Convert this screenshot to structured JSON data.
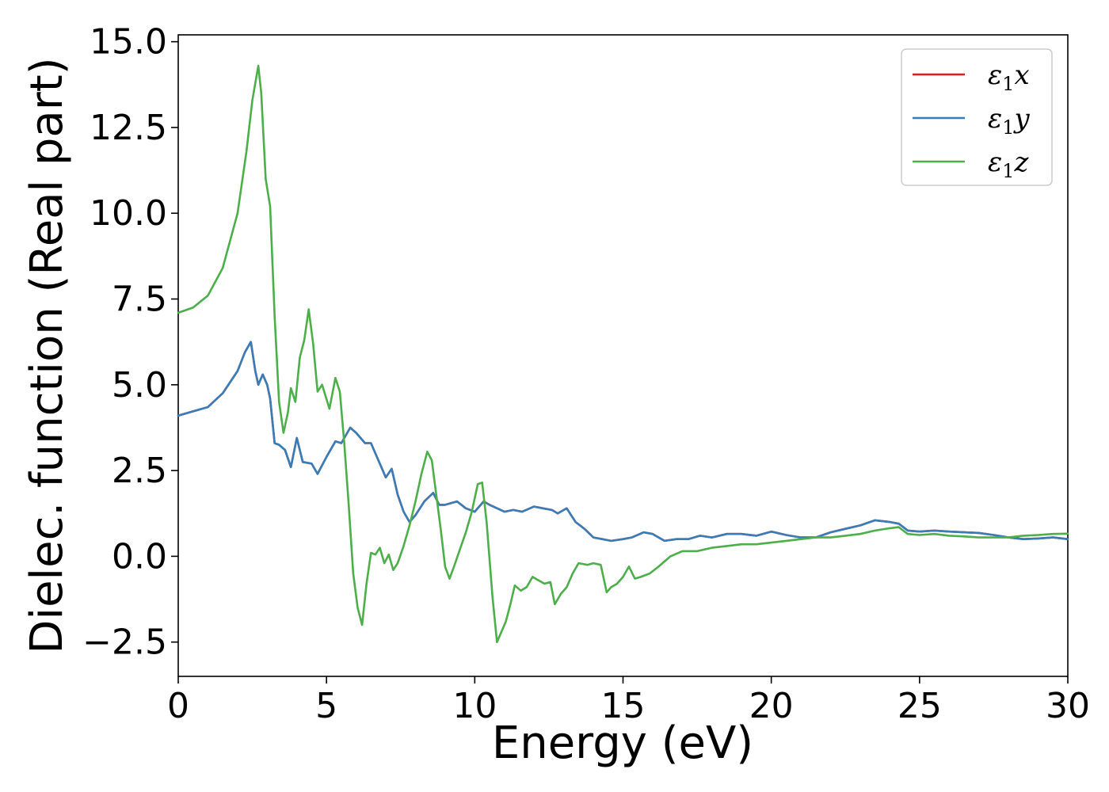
{
  "chart_data": {
    "type": "line",
    "xlabel": "Energy (eV)",
    "ylabel": "Dielec. function (Real part)",
    "xlim": [
      0,
      30
    ],
    "ylim": [
      -3.5,
      15.2
    ],
    "xticks": [
      0,
      5,
      10,
      15,
      20,
      25,
      30
    ],
    "xtick_labels": [
      "0",
      "5",
      "10",
      "15",
      "20",
      "25",
      "30"
    ],
    "yticks": [
      -2.5,
      0.0,
      2.5,
      5.0,
      7.5,
      10.0,
      12.5,
      15.0
    ],
    "ytick_labels": [
      "−2.5",
      "0.0",
      "2.5",
      "5.0",
      "7.5",
      "10.0",
      "12.5",
      "15.0"
    ],
    "grid": false,
    "legend_position": "top-right",
    "legend_labels": [
      {
        "base": "ε",
        "sub": "1",
        "var": "x"
      },
      {
        "base": "ε",
        "sub": "1",
        "var": "y"
      },
      {
        "base": "ε",
        "sub": "1",
        "var": "z"
      }
    ],
    "series": [
      {
        "name": "ε1x",
        "color": "#e41a1c",
        "points": [
          [
            0,
            4.1
          ],
          [
            1,
            4.35
          ],
          [
            1.5,
            4.75
          ],
          [
            2,
            5.4
          ],
          [
            2.25,
            5.95
          ],
          [
            2.45,
            6.25
          ],
          [
            2.6,
            5.4
          ],
          [
            2.7,
            5.0
          ],
          [
            2.85,
            5.3
          ],
          [
            3.0,
            5.0
          ],
          [
            3.1,
            4.6
          ],
          [
            3.25,
            3.3
          ],
          [
            3.4,
            3.25
          ],
          [
            3.6,
            3.1
          ],
          [
            3.8,
            2.6
          ],
          [
            4.0,
            3.45
          ],
          [
            4.2,
            2.75
          ],
          [
            4.5,
            2.7
          ],
          [
            4.7,
            2.4
          ],
          [
            5.0,
            2.9
          ],
          [
            5.3,
            3.35
          ],
          [
            5.5,
            3.3
          ],
          [
            5.8,
            3.75
          ],
          [
            6.0,
            3.6
          ],
          [
            6.3,
            3.3
          ],
          [
            6.5,
            3.3
          ],
          [
            6.8,
            2.7
          ],
          [
            7.0,
            2.3
          ],
          [
            7.2,
            2.55
          ],
          [
            7.4,
            1.8
          ],
          [
            7.6,
            1.3
          ],
          [
            7.8,
            1.0
          ],
          [
            8.0,
            1.2
          ],
          [
            8.3,
            1.6
          ],
          [
            8.6,
            1.85
          ],
          [
            8.8,
            1.5
          ],
          [
            9.0,
            1.5
          ],
          [
            9.4,
            1.6
          ],
          [
            9.7,
            1.4
          ],
          [
            10.0,
            1.3
          ],
          [
            10.3,
            1.6
          ],
          [
            10.5,
            1.5
          ],
          [
            11.0,
            1.3
          ],
          [
            11.3,
            1.35
          ],
          [
            11.6,
            1.3
          ],
          [
            12.0,
            1.45
          ],
          [
            12.3,
            1.4
          ],
          [
            12.6,
            1.35
          ],
          [
            12.8,
            1.25
          ],
          [
            13.1,
            1.4
          ],
          [
            13.4,
            1.0
          ],
          [
            13.7,
            0.8
          ],
          [
            14.0,
            0.55
          ],
          [
            14.3,
            0.5
          ],
          [
            14.6,
            0.45
          ],
          [
            15.0,
            0.5
          ],
          [
            15.3,
            0.55
          ],
          [
            15.7,
            0.7
          ],
          [
            16.0,
            0.65
          ],
          [
            16.4,
            0.45
          ],
          [
            16.8,
            0.5
          ],
          [
            17.2,
            0.5
          ],
          [
            17.6,
            0.6
          ],
          [
            18.0,
            0.55
          ],
          [
            18.5,
            0.65
          ],
          [
            19.0,
            0.65
          ],
          [
            19.5,
            0.6
          ],
          [
            20.0,
            0.72
          ],
          [
            20.5,
            0.62
          ],
          [
            21.0,
            0.55
          ],
          [
            21.5,
            0.55
          ],
          [
            22.0,
            0.7
          ],
          [
            22.5,
            0.8
          ],
          [
            23.0,
            0.9
          ],
          [
            23.5,
            1.05
          ],
          [
            24.0,
            1.0
          ],
          [
            24.3,
            0.95
          ],
          [
            24.6,
            0.75
          ],
          [
            25.0,
            0.72
          ],
          [
            25.5,
            0.75
          ],
          [
            26.0,
            0.72
          ],
          [
            26.5,
            0.7
          ],
          [
            27.0,
            0.68
          ],
          [
            27.5,
            0.62
          ],
          [
            28.0,
            0.55
          ],
          [
            28.5,
            0.5
          ],
          [
            29.0,
            0.52
          ],
          [
            29.5,
            0.55
          ],
          [
            30.0,
            0.5
          ]
        ]
      },
      {
        "name": "ε1y",
        "color": "#377eb8",
        "points": [
          [
            0,
            4.1
          ],
          [
            1,
            4.35
          ],
          [
            1.5,
            4.75
          ],
          [
            2,
            5.4
          ],
          [
            2.25,
            5.95
          ],
          [
            2.45,
            6.25
          ],
          [
            2.6,
            5.4
          ],
          [
            2.7,
            5.0
          ],
          [
            2.85,
            5.3
          ],
          [
            3.0,
            5.0
          ],
          [
            3.1,
            4.6
          ],
          [
            3.25,
            3.3
          ],
          [
            3.4,
            3.25
          ],
          [
            3.6,
            3.1
          ],
          [
            3.8,
            2.6
          ],
          [
            4.0,
            3.45
          ],
          [
            4.2,
            2.75
          ],
          [
            4.5,
            2.7
          ],
          [
            4.7,
            2.4
          ],
          [
            5.0,
            2.9
          ],
          [
            5.3,
            3.35
          ],
          [
            5.5,
            3.3
          ],
          [
            5.8,
            3.75
          ],
          [
            6.0,
            3.6
          ],
          [
            6.3,
            3.3
          ],
          [
            6.5,
            3.3
          ],
          [
            6.8,
            2.7
          ],
          [
            7.0,
            2.3
          ],
          [
            7.2,
            2.55
          ],
          [
            7.4,
            1.8
          ],
          [
            7.6,
            1.3
          ],
          [
            7.8,
            1.0
          ],
          [
            8.0,
            1.2
          ],
          [
            8.3,
            1.6
          ],
          [
            8.6,
            1.85
          ],
          [
            8.8,
            1.5
          ],
          [
            9.0,
            1.5
          ],
          [
            9.4,
            1.6
          ],
          [
            9.7,
            1.4
          ],
          [
            10.0,
            1.3
          ],
          [
            10.3,
            1.6
          ],
          [
            10.5,
            1.5
          ],
          [
            11.0,
            1.3
          ],
          [
            11.3,
            1.35
          ],
          [
            11.6,
            1.3
          ],
          [
            12.0,
            1.45
          ],
          [
            12.3,
            1.4
          ],
          [
            12.6,
            1.35
          ],
          [
            12.8,
            1.25
          ],
          [
            13.1,
            1.4
          ],
          [
            13.4,
            1.0
          ],
          [
            13.7,
            0.8
          ],
          [
            14.0,
            0.55
          ],
          [
            14.3,
            0.5
          ],
          [
            14.6,
            0.45
          ],
          [
            15.0,
            0.5
          ],
          [
            15.3,
            0.55
          ],
          [
            15.7,
            0.7
          ],
          [
            16.0,
            0.65
          ],
          [
            16.4,
            0.45
          ],
          [
            16.8,
            0.5
          ],
          [
            17.2,
            0.5
          ],
          [
            17.6,
            0.6
          ],
          [
            18.0,
            0.55
          ],
          [
            18.5,
            0.65
          ],
          [
            19.0,
            0.65
          ],
          [
            19.5,
            0.6
          ],
          [
            20.0,
            0.72
          ],
          [
            20.5,
            0.62
          ],
          [
            21.0,
            0.55
          ],
          [
            21.5,
            0.55
          ],
          [
            22.0,
            0.7
          ],
          [
            22.5,
            0.8
          ],
          [
            23.0,
            0.9
          ],
          [
            23.5,
            1.05
          ],
          [
            24.0,
            1.0
          ],
          [
            24.3,
            0.95
          ],
          [
            24.6,
            0.75
          ],
          [
            25.0,
            0.72
          ],
          [
            25.5,
            0.75
          ],
          [
            26.0,
            0.72
          ],
          [
            26.5,
            0.7
          ],
          [
            27.0,
            0.68
          ],
          [
            27.5,
            0.62
          ],
          [
            28.0,
            0.55
          ],
          [
            28.5,
            0.5
          ],
          [
            29.0,
            0.52
          ],
          [
            29.5,
            0.55
          ],
          [
            30.0,
            0.5
          ]
        ]
      },
      {
        "name": "ε1z",
        "color": "#4daf4a",
        "points": [
          [
            0,
            7.1
          ],
          [
            0.5,
            7.25
          ],
          [
            1.0,
            7.6
          ],
          [
            1.5,
            8.4
          ],
          [
            2.0,
            10.0
          ],
          [
            2.3,
            11.8
          ],
          [
            2.5,
            13.3
          ],
          [
            2.7,
            14.3
          ],
          [
            2.8,
            13.5
          ],
          [
            2.95,
            11.0
          ],
          [
            3.1,
            10.2
          ],
          [
            3.25,
            7.0
          ],
          [
            3.4,
            4.5
          ],
          [
            3.55,
            3.6
          ],
          [
            3.7,
            4.2
          ],
          [
            3.8,
            4.9
          ],
          [
            3.95,
            4.5
          ],
          [
            4.1,
            5.8
          ],
          [
            4.25,
            6.3
          ],
          [
            4.4,
            7.2
          ],
          [
            4.55,
            6.2
          ],
          [
            4.7,
            4.8
          ],
          [
            4.85,
            5.0
          ],
          [
            5.1,
            4.3
          ],
          [
            5.3,
            5.2
          ],
          [
            5.45,
            4.8
          ],
          [
            5.6,
            3.3
          ],
          [
            5.75,
            1.5
          ],
          [
            5.9,
            -0.5
          ],
          [
            6.05,
            -1.5
          ],
          [
            6.2,
            -2.0
          ],
          [
            6.35,
            -0.8
          ],
          [
            6.5,
            0.1
          ],
          [
            6.65,
            0.05
          ],
          [
            6.8,
            0.25
          ],
          [
            6.95,
            -0.2
          ],
          [
            7.1,
            0.05
          ],
          [
            7.25,
            -0.4
          ],
          [
            7.4,
            -0.2
          ],
          [
            7.6,
            0.3
          ],
          [
            7.8,
            0.9
          ],
          [
            8.0,
            1.6
          ],
          [
            8.2,
            2.4
          ],
          [
            8.4,
            3.05
          ],
          [
            8.55,
            2.8
          ],
          [
            8.7,
            1.8
          ],
          [
            8.85,
            0.8
          ],
          [
            9.0,
            -0.3
          ],
          [
            9.15,
            -0.65
          ],
          [
            9.3,
            -0.3
          ],
          [
            9.5,
            0.2
          ],
          [
            9.7,
            0.7
          ],
          [
            9.9,
            1.3
          ],
          [
            10.1,
            2.1
          ],
          [
            10.25,
            2.15
          ],
          [
            10.4,
            1.0
          ],
          [
            10.6,
            -1.2
          ],
          [
            10.75,
            -2.5
          ],
          [
            10.9,
            -2.2
          ],
          [
            11.05,
            -1.9
          ],
          [
            11.2,
            -1.4
          ],
          [
            11.35,
            -0.85
          ],
          [
            11.55,
            -1.0
          ],
          [
            11.75,
            -0.9
          ],
          [
            11.95,
            -0.6
          ],
          [
            12.15,
            -0.7
          ],
          [
            12.35,
            -0.8
          ],
          [
            12.55,
            -0.75
          ],
          [
            12.7,
            -1.4
          ],
          [
            12.9,
            -1.1
          ],
          [
            13.1,
            -0.9
          ],
          [
            13.3,
            -0.5
          ],
          [
            13.5,
            -0.2
          ],
          [
            13.8,
            -0.25
          ],
          [
            14.0,
            -0.2
          ],
          [
            14.25,
            -0.25
          ],
          [
            14.45,
            -1.05
          ],
          [
            14.6,
            -0.9
          ],
          [
            14.8,
            -0.8
          ],
          [
            15.0,
            -0.6
          ],
          [
            15.2,
            -0.3
          ],
          [
            15.4,
            -0.65
          ],
          [
            15.6,
            -0.6
          ],
          [
            15.9,
            -0.5
          ],
          [
            16.2,
            -0.3
          ],
          [
            16.6,
            0.0
          ],
          [
            17.0,
            0.15
          ],
          [
            17.5,
            0.15
          ],
          [
            18.0,
            0.25
          ],
          [
            18.5,
            0.3
          ],
          [
            19.0,
            0.35
          ],
          [
            19.5,
            0.35
          ],
          [
            20.0,
            0.4
          ],
          [
            20.5,
            0.45
          ],
          [
            21.0,
            0.5
          ],
          [
            21.5,
            0.55
          ],
          [
            22.0,
            0.55
          ],
          [
            22.5,
            0.6
          ],
          [
            23.0,
            0.65
          ],
          [
            23.5,
            0.75
          ],
          [
            24.0,
            0.82
          ],
          [
            24.3,
            0.85
          ],
          [
            24.6,
            0.65
          ],
          [
            25.0,
            0.62
          ],
          [
            25.5,
            0.65
          ],
          [
            26.0,
            0.6
          ],
          [
            26.5,
            0.58
          ],
          [
            27.0,
            0.55
          ],
          [
            27.5,
            0.55
          ],
          [
            28.0,
            0.55
          ],
          [
            28.5,
            0.6
          ],
          [
            29.0,
            0.62
          ],
          [
            29.5,
            0.65
          ],
          [
            30.0,
            0.66
          ]
        ]
      }
    ]
  }
}
